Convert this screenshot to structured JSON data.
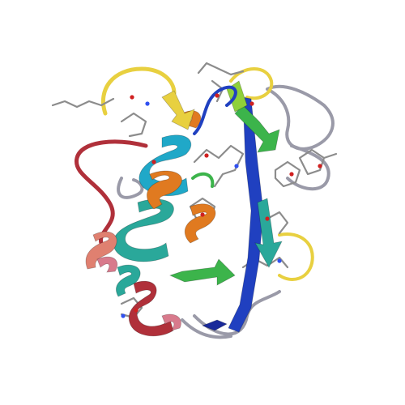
{
  "image": {
    "subject": "protein-ribbon-structure",
    "background_color": "#ffffff"
  },
  "palette": {
    "coil_gray": "#9a9aa8",
    "stick_gray": "#8c8c8c",
    "red": "#b0303a",
    "salmon": "#e08070",
    "pink": "#d87a8c",
    "orange": "#e07a20",
    "yellow": "#e8d040",
    "green": "#3cb44b",
    "lime": "#8fd03a",
    "teal": "#2aa89a",
    "cyan": "#20a8c8",
    "blue": "#2040c0",
    "navy": "#1a2a9a",
    "oxygen": "#d02020",
    "nitrogen": "#3050f0"
  }
}
